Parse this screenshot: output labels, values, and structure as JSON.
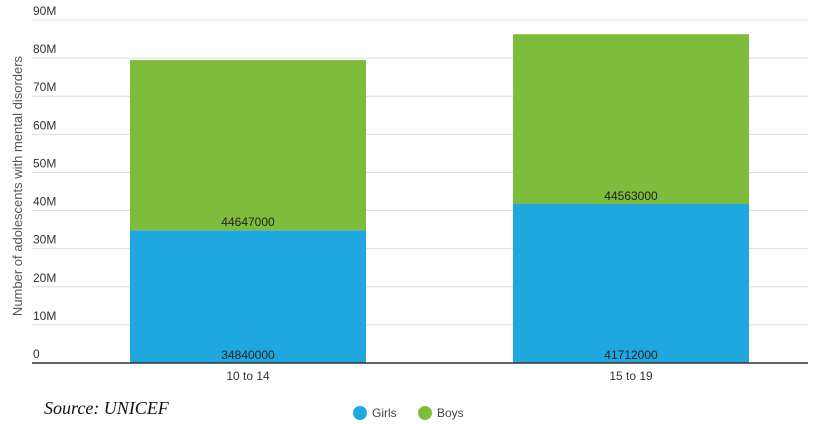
{
  "source_note": "Source: UNICEF",
  "colors": {
    "girls": "#1fa8e0",
    "boys": "#7dbd3b",
    "grid": "#dddddd",
    "axis": "#333333"
  },
  "chart_data": {
    "type": "bar",
    "stacked": true,
    "categories": [
      "10 to 14",
      "15 to 19"
    ],
    "series": [
      {
        "name": "Girls",
        "values": [
          34840000,
          41712000
        ]
      },
      {
        "name": "Boys",
        "values": [
          44647000,
          44563000
        ]
      }
    ],
    "title": "",
    "xlabel": "",
    "ylabel": "Number of adolescents with mental disorders",
    "ylim": [
      0,
      90000000
    ],
    "yticks": [
      0,
      10000000,
      20000000,
      30000000,
      40000000,
      50000000,
      60000000,
      70000000,
      80000000,
      90000000
    ],
    "ytick_labels": [
      "0",
      "10M",
      "20M",
      "30M",
      "40M",
      "50M",
      "60M",
      "70M",
      "80M",
      "90M"
    ],
    "grid": true,
    "legend_position": "bottom-center"
  }
}
